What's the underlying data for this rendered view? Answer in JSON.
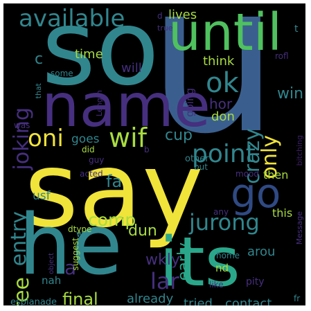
{
  "background": "#000000",
  "palette": {
    "yellow": "#f0e33a",
    "teal": "#31868e",
    "blue": "#3a5f8f",
    "purple": "#462f7f",
    "green": "#4fc15e",
    "cyan": "#2aa78a",
    "darkpurple": "#3b1f63",
    "lime": "#a8dc40",
    "navy": "#2f4a83"
  },
  "words": [
    {
      "text": "u"
    },
    {
      "text": "so"
    },
    {
      "text": "say"
    },
    {
      "text": "he"
    },
    {
      "text": "name"
    },
    {
      "text": "until"
    },
    {
      "text": "its"
    },
    {
      "text": "available"
    },
    {
      "text": "go"
    },
    {
      "text": "point"
    },
    {
      "text": "jurong"
    },
    {
      "text": "oni"
    },
    {
      "text": "wif"
    },
    {
      "text": "ok"
    },
    {
      "text": "crazy"
    },
    {
      "text": "only"
    },
    {
      "text": "joking"
    },
    {
      "text": "entry"
    },
    {
      "text": "free"
    },
    {
      "text": "comp"
    },
    {
      "text": "early"
    },
    {
      "text": "lar"
    },
    {
      "text": "final"
    },
    {
      "text": "win"
    },
    {
      "text": "wkly"
    },
    {
      "text": "dun"
    },
    {
      "text": "cup"
    },
    {
      "text": "fa"
    },
    {
      "text": "goes"
    },
    {
      "text": "a"
    },
    {
      "text": "c"
    },
    {
      "text": "time"
    },
    {
      "text": "lives"
    },
    {
      "text": "think"
    },
    {
      "text": "hor"
    },
    {
      "text": "will"
    },
    {
      "text": "don"
    },
    {
      "text": "going"
    },
    {
      "text": "then"
    },
    {
      "text": "this"
    },
    {
      "text": "usf"
    },
    {
      "text": "nah"
    },
    {
      "text": "already"
    },
    {
      "text": "tried"
    },
    {
      "text": "contact"
    },
    {
      "text": "esplanade"
    },
    {
      "text": "nd"
    },
    {
      "text": "arou"
    },
    {
      "text": "pity"
    },
    {
      "text": "home"
    },
    {
      "text": "like"
    },
    {
      "text": "fr"
    },
    {
      "text": "mood"
    },
    {
      "text": "other"
    },
    {
      "text": "but"
    },
    {
      "text": "any"
    },
    {
      "text": "acted"
    },
    {
      "text": "guy"
    },
    {
      "text": "did"
    },
    {
      "text": "dtype"
    },
    {
      "text": "object"
    },
    {
      "text": "suggest"
    },
    {
      "text": "we"
    },
    {
      "text": "some"
    },
    {
      "text": "that"
    },
    {
      "text": "was"
    },
    {
      "text": "Length"
    },
    {
      "text": "rofl"
    },
    {
      "text": "Message"
    },
    {
      "text": "bitching"
    },
    {
      "text": "true"
    },
    {
      "text": "d"
    },
    {
      "text": "t"
    },
    {
      "text": "b"
    }
  ]
}
